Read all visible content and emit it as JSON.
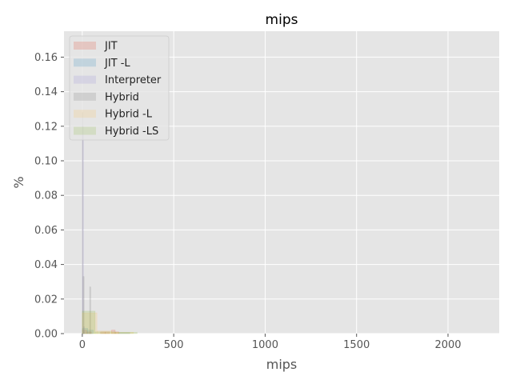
{
  "chart_data": {
    "type": "histogram",
    "title": "mips",
    "xlabel": "mips",
    "ylabel": "%",
    "xlim": [
      -100,
      2280
    ],
    "ylim": [
      0,
      0.175
    ],
    "xticks": [
      0,
      500,
      1000,
      1500,
      2000
    ],
    "yticks": [
      0.0,
      0.02,
      0.04,
      0.06,
      0.08,
      0.1,
      0.12,
      0.14,
      0.16
    ],
    "ytick_labels": [
      "0.00",
      "0.02",
      "0.04",
      "0.06",
      "0.08",
      "0.10",
      "0.12",
      "0.14",
      "0.16"
    ],
    "grid": true,
    "legend_position": "top-left",
    "series": [
      {
        "name": "JIT",
        "color": "#E24A33",
        "bins": [
          {
            "x0": 0,
            "x1": 25,
            "y": 0.002
          },
          {
            "x0": 25,
            "x1": 50,
            "y": 0.001
          },
          {
            "x0": 100,
            "x1": 125,
            "y": 0.001
          },
          {
            "x0": 125,
            "x1": 150,
            "y": 0.001
          },
          {
            "x0": 160,
            "x1": 180,
            "y": 0.002
          },
          {
            "x0": 180,
            "x1": 200,
            "y": 0.001
          }
        ]
      },
      {
        "name": "JIT -L",
        "color": "#348ABD",
        "bins": [
          {
            "x0": 0,
            "x1": 30,
            "y": 0.003
          },
          {
            "x0": 30,
            "x1": 60,
            "y": 0.002
          },
          {
            "x0": 200,
            "x1": 260,
            "y": 0.0006
          }
        ]
      },
      {
        "name": "Interpreter",
        "color": "#988ED5",
        "bins": [
          {
            "x0": 0,
            "x1": 6,
            "y": 0.12
          },
          {
            "x0": 6,
            "x1": 12,
            "y": 0.004
          }
        ]
      },
      {
        "name": "Hybrid",
        "color": "#777777",
        "bins": [
          {
            "x0": 0,
            "x1": 4,
            "y": 0.128
          },
          {
            "x0": 4,
            "x1": 10,
            "y": 0.033
          },
          {
            "x0": 40,
            "x1": 46,
            "y": 0.027
          }
        ]
      },
      {
        "name": "Hybrid -L",
        "color": "#FBC15E",
        "bins": [
          {
            "x0": 0,
            "x1": 80,
            "y": 0.012
          },
          {
            "x0": 80,
            "x1": 160,
            "y": 0.0015
          },
          {
            "x0": 160,
            "x1": 280,
            "y": 0.0008
          }
        ]
      },
      {
        "name": "Hybrid -LS",
        "color": "#8EBA42",
        "bins": [
          {
            "x0": 0,
            "x1": 70,
            "y": 0.013
          },
          {
            "x0": 70,
            "x1": 180,
            "y": 0.001
          },
          {
            "x0": 180,
            "x1": 300,
            "y": 0.0007
          }
        ]
      }
    ]
  }
}
